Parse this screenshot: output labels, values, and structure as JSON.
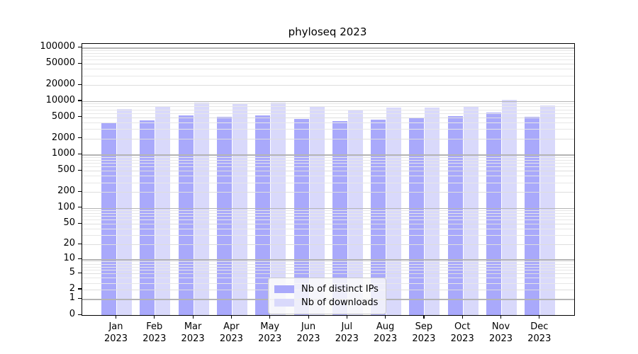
{
  "title": "phyloseq 2023",
  "colors": {
    "ips_bar": "#a9a9fb",
    "downloads_bar": "#d9d9fb",
    "grid_major": "#b4b4b4",
    "grid_minor": "#e7e7e7",
    "axis": "#000000"
  },
  "legend": {
    "items": [
      {
        "label": "Nb of distinct IPs",
        "series_key": "ips"
      },
      {
        "label": "Nb of downloads",
        "series_key": "downloads"
      }
    ]
  },
  "y_axis": {
    "scale": "log1p",
    "max_value": 117600,
    "ticks": [
      {
        "value": 0,
        "label": "0"
      },
      {
        "value": 1,
        "label": "1"
      },
      {
        "value": 2,
        "label": "2"
      },
      {
        "value": 5,
        "label": "5"
      },
      {
        "value": 10,
        "label": "10"
      },
      {
        "value": 20,
        "label": "20"
      },
      {
        "value": 50,
        "label": "50"
      },
      {
        "value": 100,
        "label": "100"
      },
      {
        "value": 200,
        "label": "200"
      },
      {
        "value": 500,
        "label": "500"
      },
      {
        "value": 1000,
        "label": "1000"
      },
      {
        "value": 2000,
        "label": "2000"
      },
      {
        "value": 5000,
        "label": "5000"
      },
      {
        "value": 10000,
        "label": "10000"
      },
      {
        "value": 20000,
        "label": "20000"
      },
      {
        "value": 50000,
        "label": "50000"
      },
      {
        "value": 100000,
        "label": "100000"
      }
    ]
  },
  "x_axis": {
    "categories": [
      {
        "month": "Jan",
        "year": "2023"
      },
      {
        "month": "Feb",
        "year": "2023"
      },
      {
        "month": "Mar",
        "year": "2023"
      },
      {
        "month": "Apr",
        "year": "2023"
      },
      {
        "month": "May",
        "year": "2023"
      },
      {
        "month": "Jun",
        "year": "2023"
      },
      {
        "month": "Jul",
        "year": "2023"
      },
      {
        "month": "Aug",
        "year": "2023"
      },
      {
        "month": "Sep",
        "year": "2023"
      },
      {
        "month": "Oct",
        "year": "2023"
      },
      {
        "month": "Nov",
        "year": "2023"
      },
      {
        "month": "Dec",
        "year": "2023"
      }
    ]
  },
  "chart_data": {
    "type": "bar",
    "title": "phyloseq 2023",
    "categories": [
      "Jan 2023",
      "Feb 2023",
      "Mar 2023",
      "Apr 2023",
      "May 2023",
      "Jun 2023",
      "Jul 2023",
      "Aug 2023",
      "Sep 2023",
      "Oct 2023",
      "Nov 2023",
      "Dec 2023"
    ],
    "series": [
      {
        "name": "Nb of distinct IPs",
        "color": "#a9a9fb",
        "values": [
          3860,
          4360,
          5340,
          5030,
          5400,
          4620,
          4220,
          4490,
          4760,
          5280,
          6150,
          5120
        ]
      },
      {
        "name": "Nb of downloads",
        "color": "#d9d9fb",
        "values": [
          7100,
          7850,
          9250,
          9060,
          9300,
          7780,
          6820,
          7480,
          7620,
          7950,
          10550,
          8340
        ]
      }
    ],
    "xlabel": "",
    "ylabel": "",
    "yscale": "log1p",
    "ylim": [
      0,
      117600
    ],
    "grid": "horizontal, major decades emphasized",
    "legend_position": "lower center"
  }
}
